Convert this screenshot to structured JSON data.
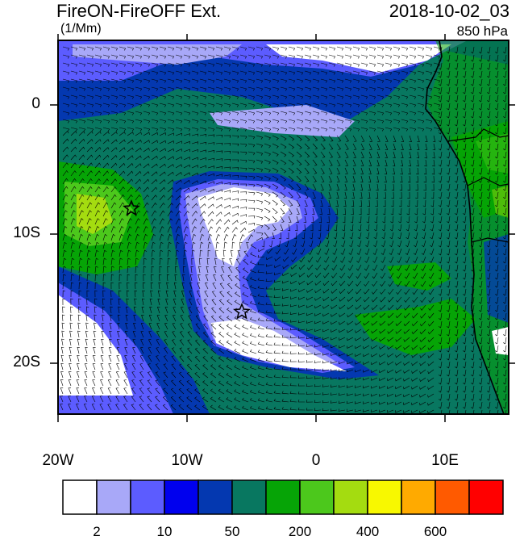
{
  "header": {
    "title": "FireON-FireOFF Ext.",
    "datetime": "2018-10-02_03",
    "units": "(1/Mm)",
    "level": "850 hPa"
  },
  "axes": {
    "lat_ticks": [
      "0",
      "10S",
      "20S"
    ],
    "lon_ticks": [
      "20W",
      "10W",
      "0",
      "10E"
    ]
  },
  "colorbar": {
    "labels": [
      "2",
      "10",
      "50",
      "200",
      "400",
      "600"
    ],
    "colors": [
      "#ffffff",
      "#a8a8f8",
      "#5c5cff",
      "#0000ee",
      "#0438b0",
      "#087760",
      "#06a406",
      "#4cc81c",
      "#a4dc10",
      "#f8f800",
      "#ffaa00",
      "#ff5a00",
      "#ff0000"
    ]
  },
  "markers": [
    "star",
    "star"
  ]
}
